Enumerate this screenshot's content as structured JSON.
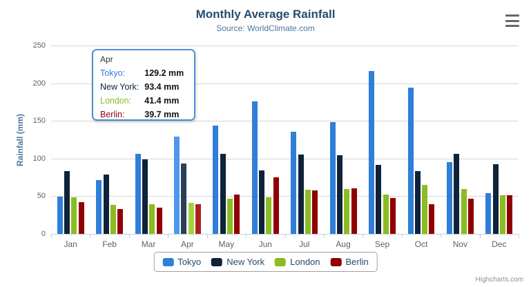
{
  "header": {
    "title": "Monthly Average Rainfall",
    "subtitle": "Source: WorldClimate.com"
  },
  "chart_data": {
    "type": "bar",
    "title": "Monthly Average Rainfall",
    "subtitle": "Source: WorldClimate.com",
    "categories": [
      "Jan",
      "Feb",
      "Mar",
      "Apr",
      "May",
      "Jun",
      "Jul",
      "Aug",
      "Sep",
      "Oct",
      "Nov",
      "Dec"
    ],
    "series": [
      {
        "name": "Tokyo",
        "color": "#2f7ed8",
        "hover_color": "#4e97ee",
        "values": [
          49.9,
          71.5,
          106.4,
          129.2,
          144.0,
          176.0,
          135.6,
          148.5,
          216.4,
          194.1,
          95.6,
          54.4
        ]
      },
      {
        "name": "New York",
        "color": "#0d233a",
        "hover_color": "#2a4059",
        "values": [
          83.6,
          78.8,
          98.5,
          93.4,
          106.0,
          84.5,
          105.0,
          104.3,
          91.2,
          83.5,
          106.6,
          92.3
        ]
      },
      {
        "name": "London",
        "color": "#8bbc21",
        "hover_color": "#a3d23f",
        "values": [
          48.9,
          38.8,
          39.3,
          41.4,
          47.0,
          48.3,
          59.0,
          59.6,
          52.4,
          65.2,
          59.3,
          51.2
        ]
      },
      {
        "name": "Berlin",
        "color": "#910000",
        "hover_color": "#ad1f1f",
        "values": [
          42.4,
          33.2,
          34.5,
          39.7,
          52.6,
          75.5,
          57.4,
          60.4,
          47.6,
          39.1,
          46.8,
          51.1
        ]
      }
    ],
    "xlabel": "",
    "ylabel": "Rainfall (mm)",
    "ylim": [
      0,
      250
    ],
    "yticks": [
      0,
      50,
      100,
      150,
      200,
      250
    ],
    "grid": true,
    "legend_position": "bottom",
    "highlight_index": 3
  },
  "tooltip": {
    "header": "Apr",
    "rows": [
      {
        "label": "Tokyo:",
        "value": "129.2 mm",
        "color": "#2f7ed8"
      },
      {
        "label": "New York:",
        "value": "93.4 mm",
        "color": "#0d233a"
      },
      {
        "label": "London:",
        "value": "41.4 mm",
        "color": "#8bbc21"
      },
      {
        "label": "Berlin:",
        "value": "39.7 mm",
        "color": "#910000"
      }
    ]
  },
  "credit": "Highcharts.com",
  "colors": {
    "title": "#274b6d",
    "subtitle": "#4d759e",
    "axis_label": "#606060",
    "axis_line": "#c0d0e0",
    "gridline": "#d6d6d6",
    "tooltip_border": "#4a90d9"
  }
}
